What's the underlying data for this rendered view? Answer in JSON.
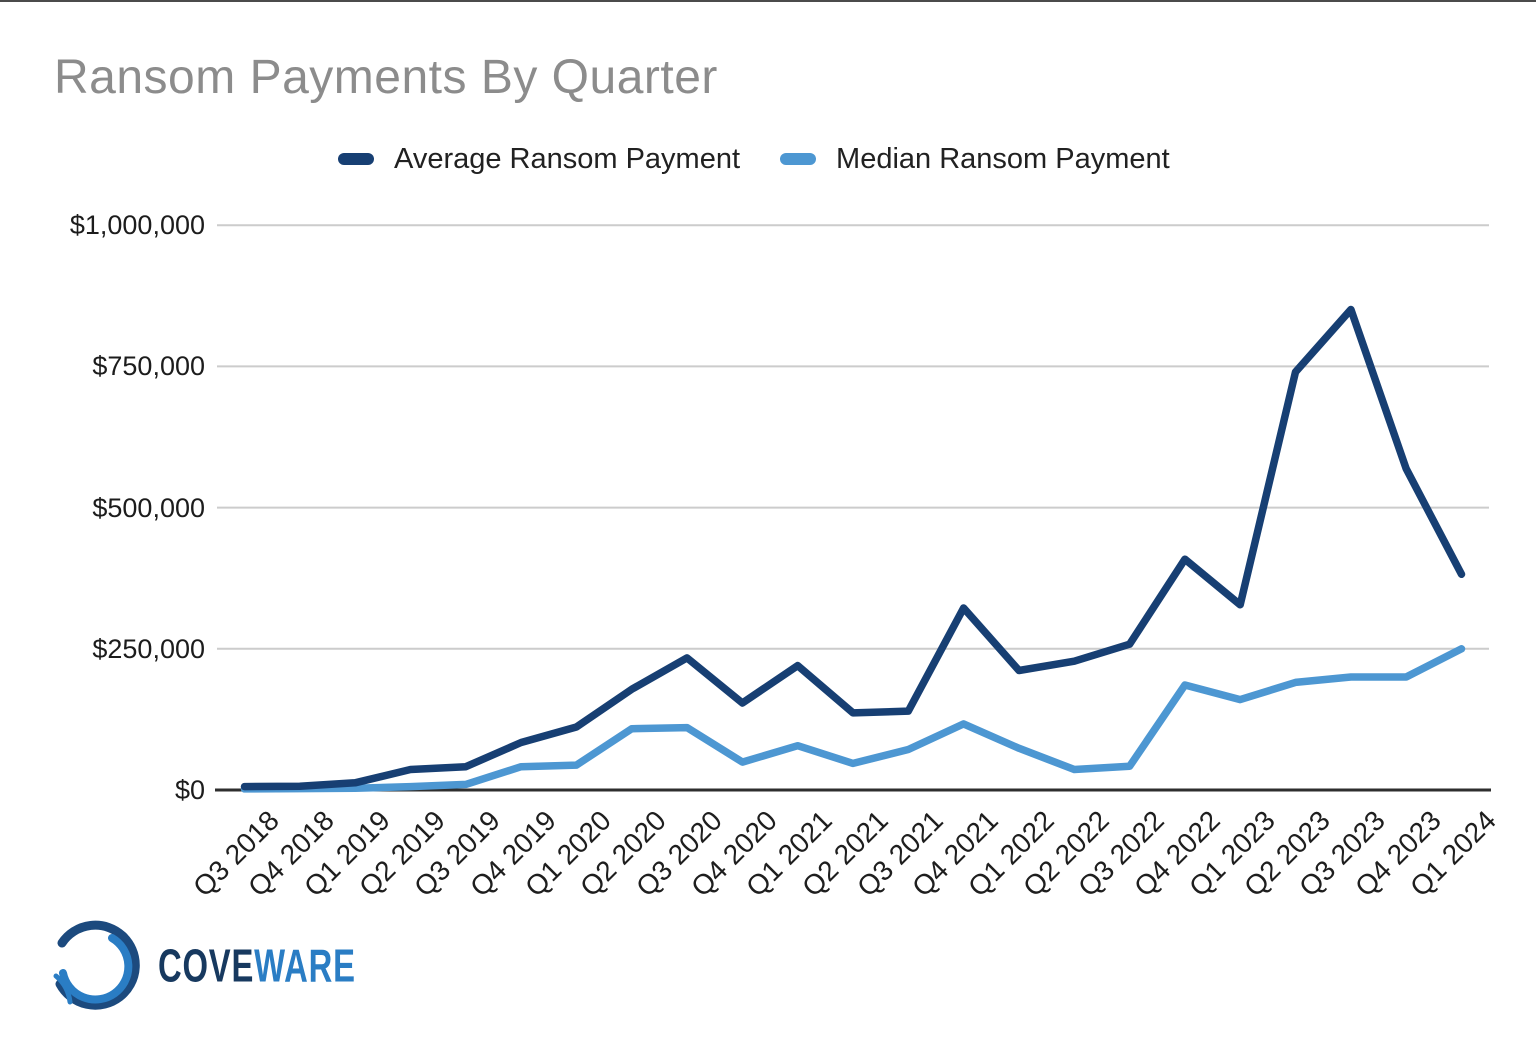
{
  "title": "Ransom Payments By Quarter",
  "chart_data": {
    "type": "line",
    "title": "Ransom Payments By Quarter",
    "categories": [
      "Q3 2018",
      "Q4 2018",
      "Q1 2019",
      "Q2 2019",
      "Q3 2019",
      "Q4 2019",
      "Q1 2020",
      "Q2 2020",
      "Q3 2020",
      "Q4 2020",
      "Q1 2021",
      "Q2 2021",
      "Q3 2021",
      "Q4 2021",
      "Q1 2022",
      "Q2 2022",
      "Q3 2022",
      "Q4 2022",
      "Q1 2023",
      "Q2 2023",
      "Q3 2023",
      "Q4 2023",
      "Q1 2024"
    ],
    "series": [
      {
        "name": "Average Ransom Payment",
        "color": "#173f73",
        "values": [
          5973,
          6733,
          12762,
          36295,
          41198,
          84116,
          111605,
          178254,
          233817,
          154108,
          220298,
          136576,
          139739,
          322168,
          211529,
          228125,
          258143,
          408644,
          327883,
          740144,
          850700,
          568705,
          381980
        ]
      },
      {
        "name": "Median Ransom Payment",
        "color": "#4d97d2",
        "values": [
          2000,
          2500,
          3000,
          6000,
          10000,
          41179,
          44021,
          108597,
          110532,
          49450,
          78398,
          47008,
          71674,
          117116,
          73906,
          36360,
          41987,
          185972,
          160000,
          190424,
          200000,
          200000,
          250000
        ]
      }
    ],
    "y_ticks": [
      {
        "value": 0,
        "label": "$0"
      },
      {
        "value": 250000,
        "label": "$250,000"
      },
      {
        "value": 500000,
        "label": "$500,000"
      },
      {
        "value": 750000,
        "label": "$750,000"
      },
      {
        "value": 1000000,
        "label": "$1,000,000"
      }
    ],
    "ylim": [
      0,
      1000000
    ],
    "xlabel": "",
    "ylabel": "",
    "grid": true,
    "legend_position": "top",
    "x_label_rotation_deg": -45
  },
  "colors": {
    "gridline": "#cccccc",
    "axis": "#2e2e2e",
    "title_text": "#8c8c8c",
    "tick_text": "#1c1c1c"
  },
  "logo": {
    "text_primary": "COVE",
    "text_secondary": "WARE",
    "color_primary": "#17395f",
    "color_secondary": "#2a7dc4"
  }
}
